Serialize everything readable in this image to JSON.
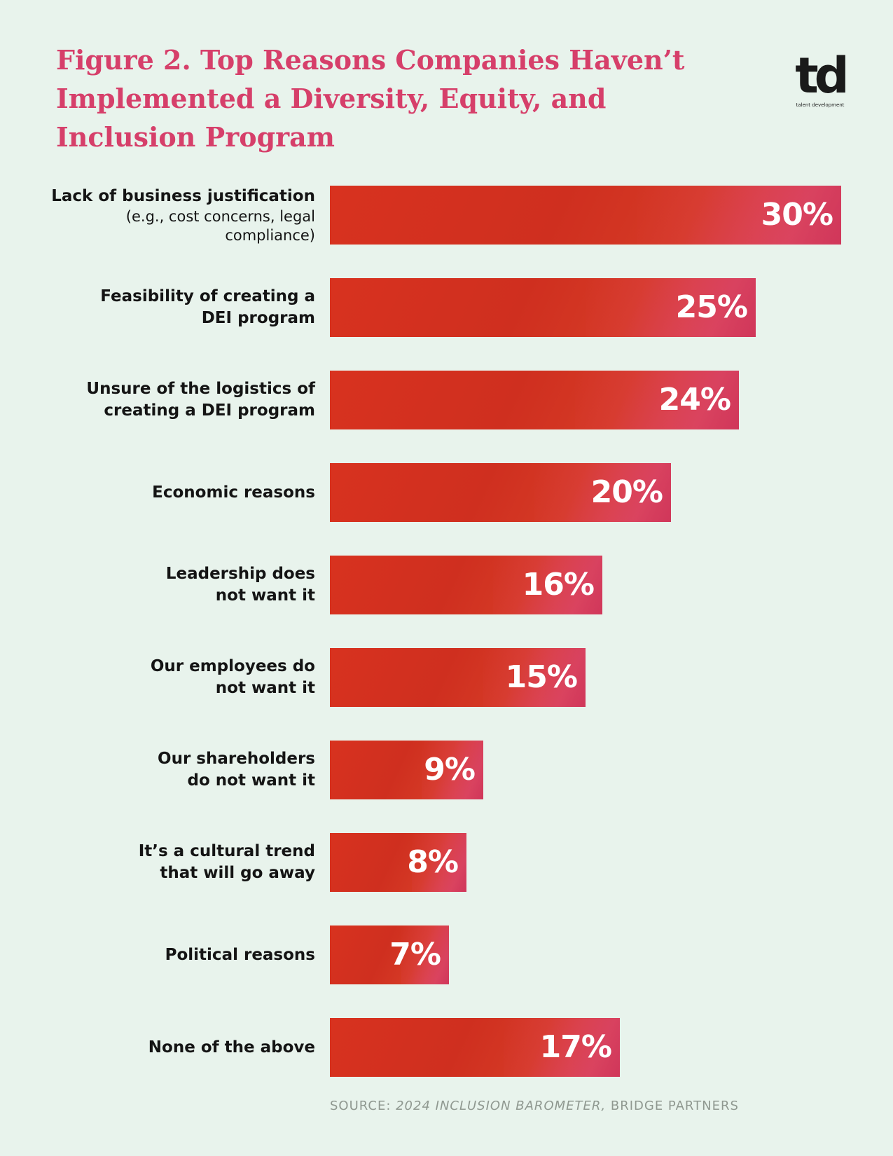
{
  "title_lines": [
    "Figure 2. Top Reasons Companies Haven’t",
    "Implemented a Diversity, Equity, and",
    "Inclusion Program"
  ],
  "logo": {
    "mark": "td",
    "sub": "talent development"
  },
  "source": {
    "prefix": "SOURCE: ",
    "title": "2024 INCLUSION BAROMETER,",
    "suffix": " BRIDGE PARTNERS"
  },
  "colors": {
    "title": "#d63f6a",
    "bar": "#d8321f",
    "background": "#e8f3ec"
  },
  "chart_data": {
    "type": "bar",
    "orientation": "horizontal",
    "title": "Figure 2. Top Reasons Companies Haven’t Implemented a Diversity, Equity, and Inclusion Program",
    "unit": "%",
    "xlim": [
      0,
      30
    ],
    "grid": false,
    "legend": "none",
    "categories": [
      {
        "label": "Lack of business justification",
        "sublabel": "(e.g., cost concerns, legal\ncompliance)",
        "value": 30,
        "display": "30%"
      },
      {
        "label": "Feasibility of creating a\nDEI program",
        "sublabel": "",
        "value": 25,
        "display": "25%"
      },
      {
        "label": "Unsure of the logistics of\ncreating a DEI program",
        "sublabel": "",
        "value": 24,
        "display": "24%"
      },
      {
        "label": "Economic reasons",
        "sublabel": "",
        "value": 20,
        "display": "20%"
      },
      {
        "label": "Leadership does\nnot want it",
        "sublabel": "",
        "value": 16,
        "display": "16%"
      },
      {
        "label": "Our employees do\nnot want it",
        "sublabel": "",
        "value": 15,
        "display": "15%"
      },
      {
        "label": "Our shareholders\ndo not want it",
        "sublabel": "",
        "value": 9,
        "display": "9%"
      },
      {
        "label": "It’s a cultural trend\nthat will go away",
        "sublabel": "",
        "value": 8,
        "display": "8%"
      },
      {
        "label": "Political reasons",
        "sublabel": "",
        "value": 7,
        "display": "7%"
      },
      {
        "label": "None of the above",
        "sublabel": "",
        "value": 17,
        "display": "17%"
      }
    ]
  }
}
